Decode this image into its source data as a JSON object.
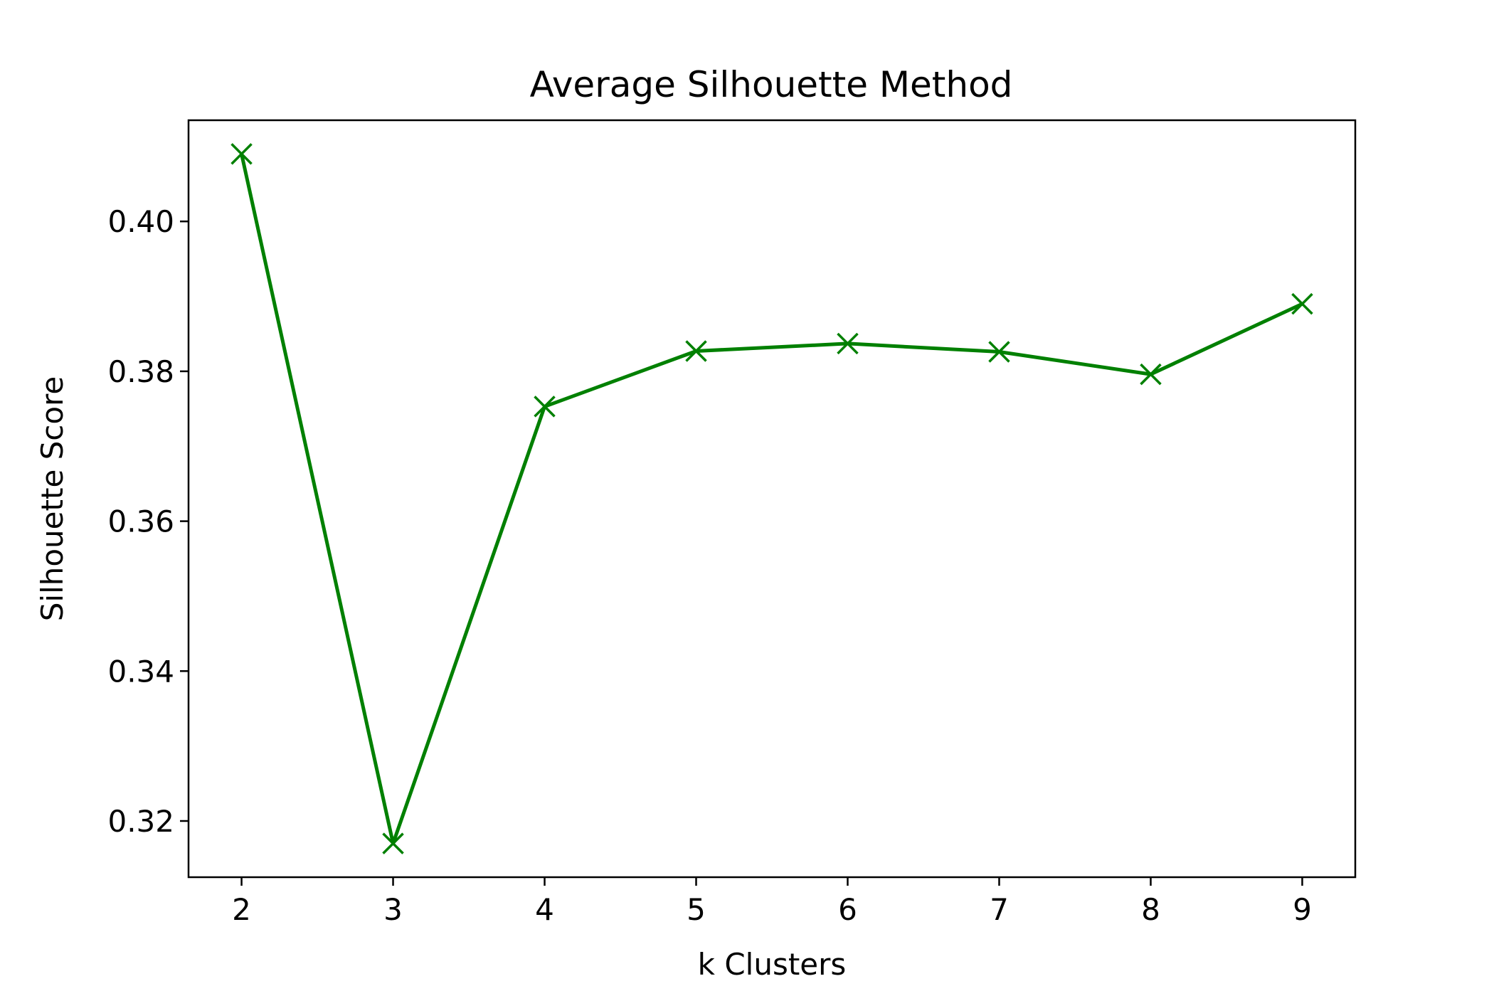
{
  "chart_data": {
    "type": "line",
    "title": "Average Silhouette Method",
    "xlabel": "k Clusters",
    "ylabel": "Silhouette Score",
    "x": [
      2,
      3,
      4,
      5,
      6,
      7,
      8,
      9
    ],
    "xticks": [
      "2",
      "3",
      "4",
      "5",
      "6",
      "7",
      "8",
      "9"
    ],
    "yticks": [
      "0.32",
      "0.34",
      "0.36",
      "0.38",
      "0.40"
    ],
    "ylim": [
      0.3125,
      0.4135
    ],
    "xlim": [
      1.65,
      9.35
    ],
    "grid": false,
    "series": [
      {
        "color": "#008000",
        "marker": "x",
        "values": [
          0.409,
          0.317,
          0.3753,
          0.3827,
          0.3837,
          0.3826,
          0.3796,
          0.389
        ]
      }
    ]
  }
}
